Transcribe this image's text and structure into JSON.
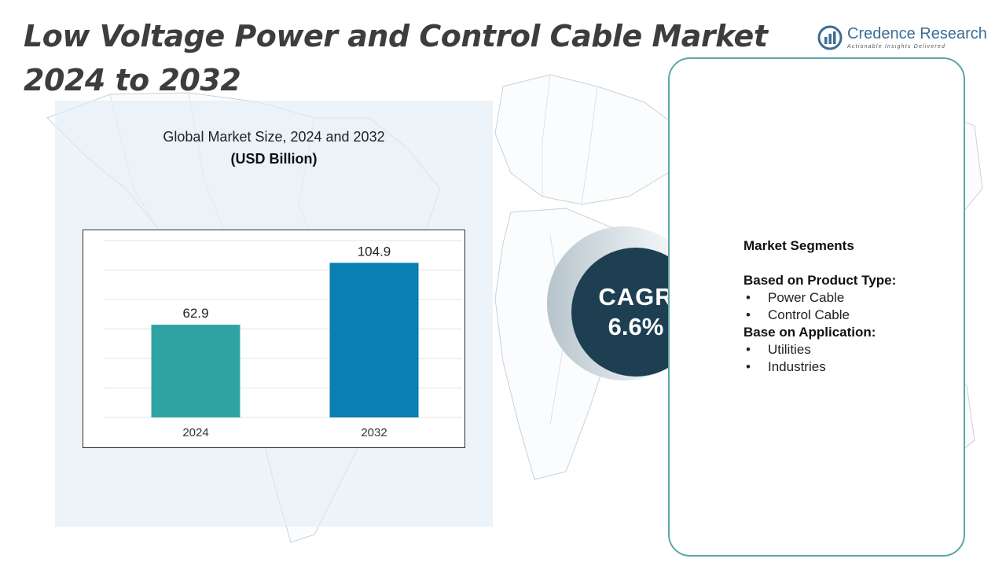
{
  "title": {
    "line1": "Low Voltage Power and Control Cable Market",
    "line2": "2024 to 2032"
  },
  "brand": {
    "name": "Credence Research",
    "tagline": "Actionable Insights Delivered"
  },
  "chart_panel": {
    "title": "Global Market Size, 2024 and 2032",
    "units": "(USD Billion)"
  },
  "chart_data": {
    "type": "bar",
    "title": "Global Market Size, 2024 and 2032",
    "ylabel": "(USD Billion)",
    "categories": [
      "2024",
      "2032"
    ],
    "values": [
      62.9,
      104.9
    ],
    "ylim": [
      0,
      120
    ],
    "grid": true,
    "bar_colors": [
      "#2fa3a3",
      "#0a7fb2"
    ]
  },
  "cagr": {
    "label": "CAGR",
    "value": "6.6%"
  },
  "segments": {
    "heading": "Market Segments",
    "groups": [
      {
        "title": "Based on Product Type:",
        "items": [
          "Power Cable",
          "Control Cable"
        ]
      },
      {
        "title": "Base on Application:",
        "items": [
          "Utilities",
          "Industries"
        ]
      }
    ],
    "bullet": "•"
  },
  "colors": {
    "title": "#3d3d3d",
    "brand": "#3a6d95",
    "cagr_disc": "#1e3f52",
    "card_border": "#5aa7a4",
    "panel_bg": "#e2edf6"
  }
}
